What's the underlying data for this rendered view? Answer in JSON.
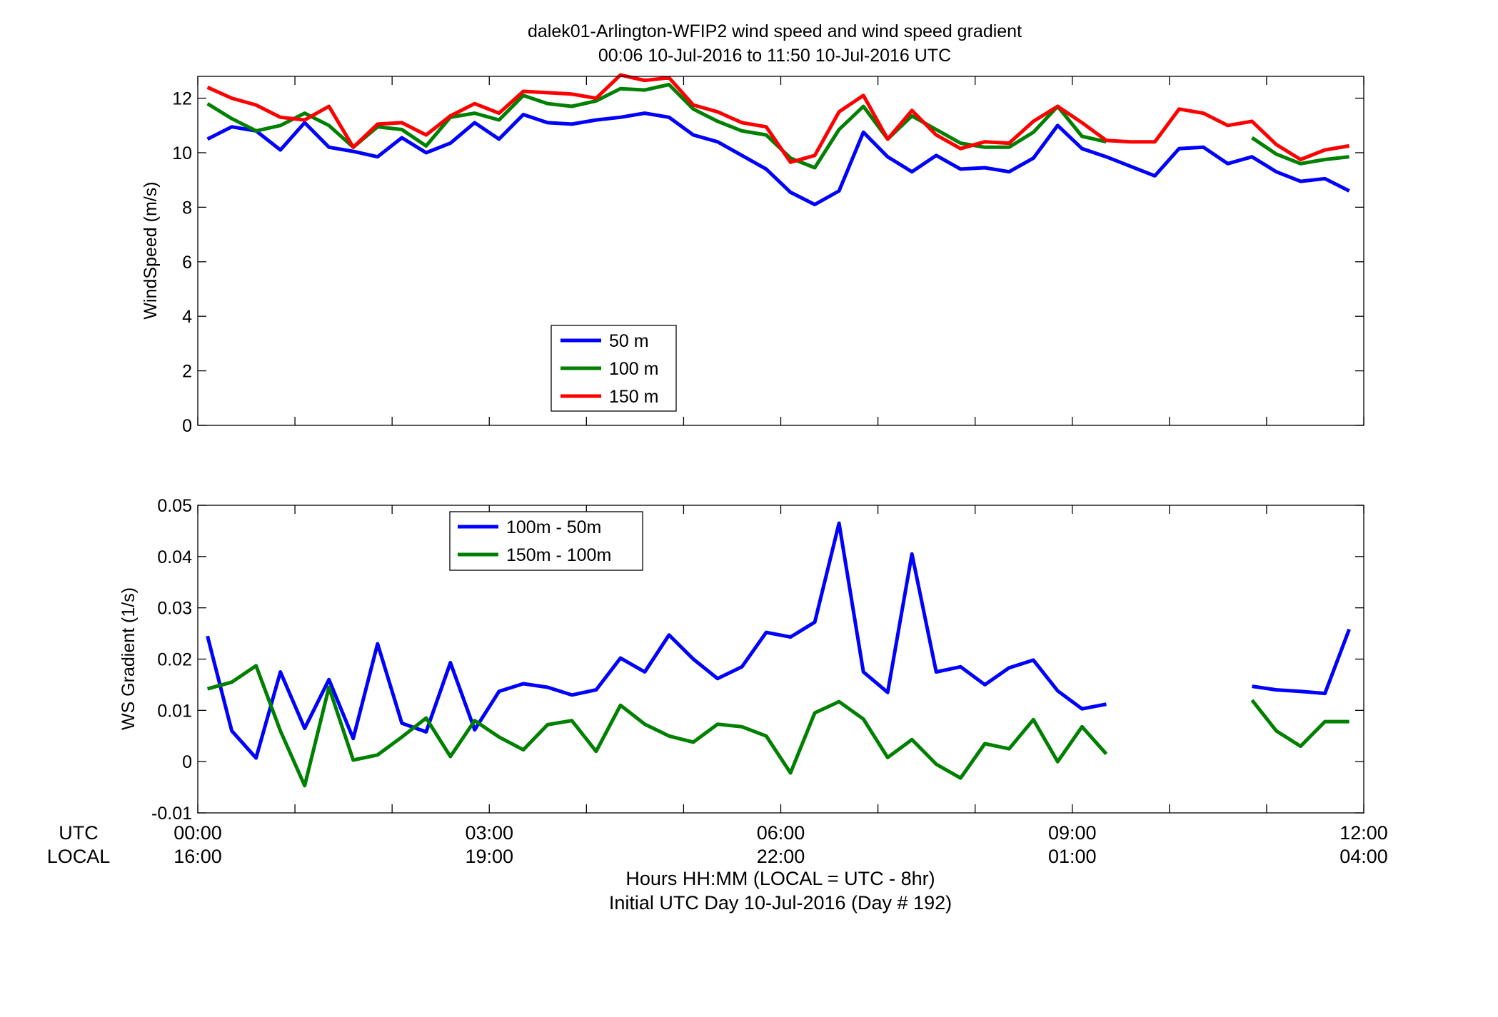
{
  "title": {
    "line1": "dalek01-Arlington-WFIP2  wind speed and wind speed gradient",
    "line2": "00:06 10-Jul-2016 to 11:50 10-Jul-2016  UTC"
  },
  "xaxis": {
    "row1_label": "UTC",
    "row2_label": "LOCAL",
    "ticks": [
      0,
      3,
      6,
      9,
      12
    ],
    "utc_labels": [
      "00:00",
      "03:00",
      "06:00",
      "09:00",
      "12:00"
    ],
    "local_labels": [
      "16:00",
      "19:00",
      "22:00",
      "01:00",
      "04:00"
    ],
    "xlabel_line1": "Hours HH:MM  (LOCAL = UTC - 8hr)",
    "xlabel_line2": "Initial UTC Day 10-Jul-2016 (Day # 192)",
    "xlim": [
      0,
      12
    ]
  },
  "chart_data": [
    {
      "type": "line",
      "ylabel": "WindSpeed (m/s)",
      "ylim": [
        0,
        12.8
      ],
      "yticks": [
        0,
        2,
        4,
        6,
        8,
        10,
        12
      ],
      "legend_position": "lower-center",
      "colors": [
        "#0000ff",
        "#008000",
        "#ff0000"
      ],
      "x": [
        0.1,
        0.35,
        0.6,
        0.85,
        1.1,
        1.35,
        1.6,
        1.85,
        2.1,
        2.35,
        2.6,
        2.85,
        3.1,
        3.35,
        3.6,
        3.85,
        4.1,
        4.35,
        4.6,
        4.85,
        5.1,
        5.35,
        5.6,
        5.85,
        6.1,
        6.35,
        6.6,
        6.85,
        7.1,
        7.35,
        7.6,
        7.85,
        8.1,
        8.35,
        8.6,
        8.85,
        9.1,
        9.35,
        9.6,
        9.85,
        10.1,
        10.35,
        10.6,
        10.85,
        11.1,
        11.35,
        11.6,
        11.85
      ],
      "series": [
        {
          "name": "50 m",
          "values": [
            10.5,
            10.95,
            10.8,
            10.1,
            11.1,
            10.2,
            10.05,
            9.85,
            10.55,
            10.0,
            10.35,
            11.1,
            10.5,
            11.4,
            11.1,
            11.05,
            11.2,
            11.3,
            11.45,
            11.3,
            10.65,
            10.4,
            9.9,
            9.4,
            8.55,
            8.1,
            8.6,
            10.75,
            9.85,
            9.3,
            9.9,
            9.4,
            9.45,
            9.3,
            9.8,
            11.0,
            10.15,
            9.85,
            9.5,
            9.15,
            10.15,
            10.2,
            9.6,
            9.85,
            9.3,
            8.95,
            9.05,
            8.6
          ]
        },
        {
          "name": "100 m",
          "values": [
            11.8,
            11.25,
            10.8,
            11.0,
            11.45,
            11.0,
            10.2,
            10.95,
            10.85,
            10.25,
            11.3,
            11.45,
            11.2,
            12.1,
            11.8,
            11.7,
            11.9,
            12.35,
            12.3,
            12.5,
            11.6,
            11.15,
            10.8,
            10.65,
            9.8,
            9.45,
            10.85,
            11.7,
            10.5,
            11.35,
            10.85,
            10.35,
            10.2,
            10.2,
            10.75,
            11.7,
            10.6,
            10.4,
            null,
            null,
            null,
            null,
            null,
            10.55,
            9.95,
            9.6,
            9.75,
            9.85
          ]
        },
        {
          "name": "150 m",
          "values": [
            12.4,
            12.0,
            11.75,
            11.3,
            11.2,
            11.7,
            10.2,
            11.05,
            11.1,
            10.65,
            11.35,
            11.8,
            11.45,
            12.25,
            12.2,
            12.15,
            12.0,
            12.85,
            12.65,
            12.75,
            11.75,
            11.5,
            11.1,
            10.95,
            9.65,
            9.9,
            11.5,
            12.1,
            10.5,
            11.55,
            10.65,
            10.15,
            10.4,
            10.35,
            11.15,
            11.7,
            11.1,
            10.45,
            10.4,
            10.4,
            11.6,
            11.45,
            11.0,
            11.15,
            10.3,
            9.75,
            10.1,
            10.25
          ]
        }
      ]
    },
    {
      "type": "line",
      "ylabel": "WS Gradient (1/s)",
      "ylim": [
        -0.01,
        0.05
      ],
      "yticks": [
        -0.01,
        0,
        0.01,
        0.02,
        0.03,
        0.04,
        0.05
      ],
      "ytick_labels": [
        "-0.01",
        "0",
        "0.01",
        "0.02",
        "0.03",
        "0.04",
        "0.05"
      ],
      "legend_position": "upper-left",
      "colors": [
        "#0000ff",
        "#008000"
      ],
      "x": [
        0.1,
        0.35,
        0.6,
        0.85,
        1.1,
        1.35,
        1.6,
        1.85,
        2.1,
        2.35,
        2.6,
        2.85,
        3.1,
        3.35,
        3.6,
        3.85,
        4.1,
        4.35,
        4.6,
        4.85,
        5.1,
        5.35,
        5.6,
        5.85,
        6.1,
        6.35,
        6.6,
        6.85,
        7.1,
        7.35,
        7.6,
        7.85,
        8.1,
        8.35,
        8.6,
        8.85,
        9.1,
        9.35,
        9.6,
        9.85,
        10.1,
        10.35,
        10.6,
        10.85,
        11.1,
        11.35,
        11.6,
        11.85
      ],
      "series": [
        {
          "name": "100m - 50m",
          "values": [
            0.0245,
            0.006,
            0.0007,
            0.0175,
            0.0065,
            0.016,
            0.0045,
            0.023,
            0.0075,
            0.0058,
            0.0193,
            0.0062,
            0.0137,
            0.0152,
            0.0145,
            0.013,
            0.014,
            0.0202,
            0.0175,
            0.0247,
            0.02,
            0.0162,
            0.0185,
            0.0252,
            0.0243,
            0.0272,
            0.0465,
            0.0175,
            0.0135,
            0.0405,
            0.0175,
            0.0185,
            0.015,
            0.0183,
            0.0198,
            0.0138,
            0.0103,
            0.0112,
            null,
            null,
            null,
            null,
            null,
            0.0147,
            0.014,
            0.0137,
            0.0133,
            0.0258
          ]
        },
        {
          "name": "150m - 100m",
          "values": [
            0.0142,
            0.0155,
            0.0187,
            0.006,
            -0.0047,
            0.0145,
            0.0003,
            0.0013,
            0.0048,
            0.0085,
            0.001,
            0.008,
            0.0048,
            0.0023,
            0.0072,
            0.008,
            0.002,
            0.011,
            0.0073,
            0.005,
            0.0038,
            0.0073,
            0.0068,
            0.005,
            -0.0022,
            0.0095,
            0.0117,
            0.0083,
            0.0008,
            0.0043,
            -0.0005,
            -0.0032,
            0.0035,
            0.0025,
            0.0082,
            0.0,
            0.0068,
            0.0015,
            null,
            null,
            null,
            null,
            null,
            0.012,
            0.006,
            0.003,
            0.0078,
            0.0078
          ]
        }
      ]
    }
  ]
}
